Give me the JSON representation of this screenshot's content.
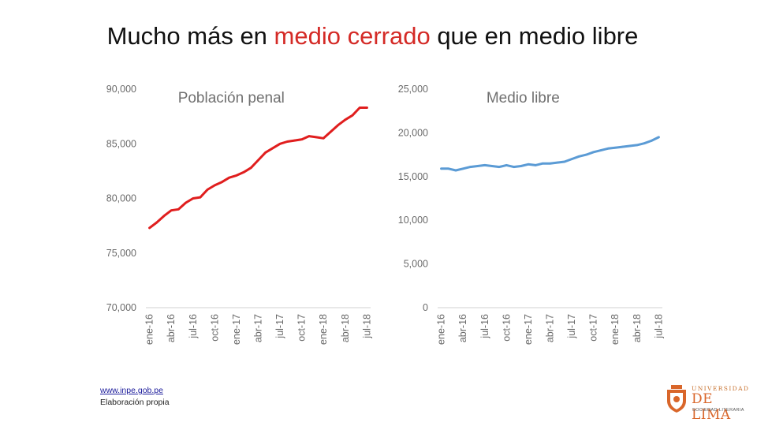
{
  "title": {
    "part1": "Mucho más en ",
    "highlight": "medio cerrado",
    "part2": " que en medio libre"
  },
  "colors": {
    "highlight": "#d42a26",
    "penal_line": "#e01e1e",
    "libre_line": "#5b9bd5",
    "logo": "#d9662a"
  },
  "chart_data": [
    {
      "type": "line",
      "title": "Población penal",
      "categories": [
        "ene-16",
        "feb-16",
        "mar-16",
        "abr-16",
        "may-16",
        "jun-16",
        "jul-16",
        "ago-16",
        "sep-16",
        "oct-16",
        "nov-16",
        "dic-16",
        "ene-17",
        "feb-17",
        "mar-17",
        "abr-17",
        "may-17",
        "jun-17",
        "jul-17",
        "ago-17",
        "sep-17",
        "oct-17",
        "nov-17",
        "dic-17",
        "ene-18",
        "feb-18",
        "mar-18",
        "abr-18",
        "may-18",
        "jun-18",
        "jul-18"
      ],
      "tick_labels": [
        "ene-16",
        "abr-16",
        "jul-16",
        "oct-16",
        "ene-17",
        "abr-17",
        "jul-17",
        "oct-17",
        "ene-18",
        "abr-18",
        "jul-18"
      ],
      "series": [
        {
          "name": "Población penal",
          "values": [
            77300,
            77800,
            78400,
            78900,
            79000,
            79600,
            80000,
            80100,
            80800,
            81200,
            81500,
            81900,
            82100,
            82400,
            82800,
            83500,
            84200,
            84600,
            85000,
            85200,
            85300,
            85400,
            85700,
            85600,
            85500,
            86100,
            86700,
            87200,
            87600,
            88300,
            88300
          ]
        }
      ],
      "y_ticks": [
        "90,000",
        "85,000",
        "80,000",
        "75,000",
        "70,000"
      ],
      "ylim": [
        70000,
        90000
      ]
    },
    {
      "type": "line",
      "title": "Medio libre",
      "categories": [
        "ene-16",
        "feb-16",
        "mar-16",
        "abr-16",
        "may-16",
        "jun-16",
        "jul-16",
        "ago-16",
        "sep-16",
        "oct-16",
        "nov-16",
        "dic-16",
        "ene-17",
        "feb-17",
        "mar-17",
        "abr-17",
        "may-17",
        "jun-17",
        "jul-17",
        "ago-17",
        "sep-17",
        "oct-17",
        "nov-17",
        "dic-17",
        "ene-18",
        "feb-18",
        "mar-18",
        "abr-18",
        "may-18",
        "jun-18",
        "jul-18"
      ],
      "tick_labels": [
        "ene-16",
        "abr-16",
        "jul-16",
        "oct-16",
        "ene-17",
        "abr-17",
        "jul-17",
        "oct-17",
        "ene-18",
        "abr-18",
        "jul-18"
      ],
      "series": [
        {
          "name": "Medio libre",
          "values": [
            15900,
            15900,
            15700,
            15900,
            16100,
            16200,
            16300,
            16200,
            16100,
            16300,
            16100,
            16200,
            16400,
            16300,
            16500,
            16500,
            16600,
            16700,
            17000,
            17300,
            17500,
            17800,
            18000,
            18200,
            18300,
            18400,
            18500,
            18600,
            18800,
            19100,
            19500
          ]
        }
      ],
      "y_ticks": [
        "25,000",
        "20,000",
        "15,000",
        "10,000",
        "5,000",
        "0"
      ],
      "ylim": [
        0,
        25000
      ]
    }
  ],
  "source": {
    "link": "www.inpe.gob.pe",
    "note": "Elaboración propia"
  },
  "logo": {
    "line1": "UNIVERSIDAD",
    "line2": "DE LIMA",
    "line3": "SOCIEDAD LITERARIA"
  }
}
